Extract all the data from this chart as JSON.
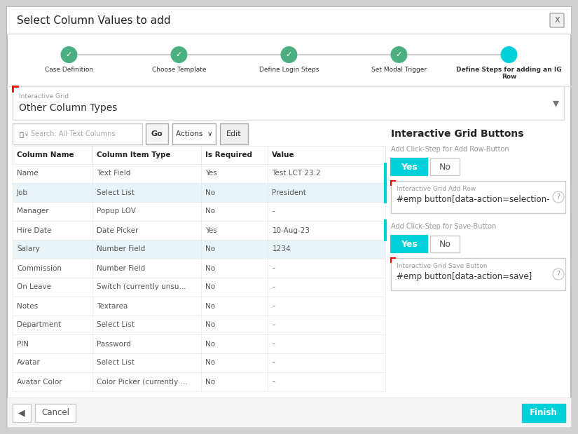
{
  "title": "Select Column Values to add",
  "wizard_steps": [
    {
      "label": "Case Definition",
      "done": true,
      "active": false
    },
    {
      "label": "Choose Template",
      "done": true,
      "active": false
    },
    {
      "label": "Define Login Steps",
      "done": true,
      "active": false
    },
    {
      "label": "Set Modal Trigger",
      "done": true,
      "active": false
    },
    {
      "label": "Define Steps for adding an IG\nRow",
      "done": false,
      "active": true
    }
  ],
  "ig_label": "Interactive Grid",
  "ig_value": "Other Column Types",
  "search_placeholder": "Search: All Text Columns",
  "table_headers": [
    "Column Name",
    "Column Item Type",
    "Is Required",
    "Value"
  ],
  "table_rows": [
    {
      "col": "Name",
      "type": "Text Field",
      "req": "Yes",
      "val": "Test LCT 23.2",
      "cyan_border": true,
      "bg": "#ffffff"
    },
    {
      "col": "Job",
      "type": "Select List",
      "req": "No",
      "val": "President",
      "cyan_border": true,
      "bg": "#e8f4f8"
    },
    {
      "col": "Manager",
      "type": "Popup LOV",
      "req": "No",
      "val": "-",
      "cyan_border": false,
      "bg": "#ffffff"
    },
    {
      "col": "Hire Date",
      "type": "Date Picker",
      "req": "Yes",
      "val": "10-Aug-23",
      "cyan_border": true,
      "bg": "#ffffff"
    },
    {
      "col": "Salary",
      "type": "Number Field",
      "req": "No",
      "val": "1234",
      "cyan_border": false,
      "bg": "#e8f4f8"
    },
    {
      "col": "Commission",
      "type": "Number Field",
      "req": "No",
      "val": "-",
      "cyan_border": false,
      "bg": "#ffffff"
    },
    {
      "col": "On Leave",
      "type": "Switch (currently unsu...",
      "req": "No",
      "val": "-",
      "cyan_border": false,
      "bg": "#ffffff"
    },
    {
      "col": "Notes",
      "type": "Textarea",
      "req": "No",
      "val": "-",
      "cyan_border": false,
      "bg": "#ffffff"
    },
    {
      "col": "Department",
      "type": "Select List",
      "req": "No",
      "val": "-",
      "cyan_border": false,
      "bg": "#ffffff"
    },
    {
      "col": "PIN",
      "type": "Password",
      "req": "No",
      "val": "-",
      "cyan_border": false,
      "bg": "#ffffff"
    },
    {
      "col": "Avatar",
      "type": "Select List",
      "req": "No",
      "val": "-",
      "cyan_border": false,
      "bg": "#ffffff"
    },
    {
      "col": "Avatar Color",
      "type": "Color Picker (currently ...",
      "req": "No",
      "val": "-",
      "cyan_border": false,
      "bg": "#ffffff"
    }
  ],
  "right_panel_title": "Interactive Grid Buttons",
  "add_row_label": "Add Click-Step for Add Row-Button",
  "add_row_field_label": "Interactive Grid Add Row",
  "add_row_field_value": "#emp button[data-action=selection-",
  "save_label": "Add Click-Step for Save-Button",
  "save_field_label": "Interactive Grid Save Button",
  "save_field_value": "#emp button[data-action=save]",
  "cyan": "#00d0d8",
  "green": "#4caf82",
  "cancel_label": "Cancel",
  "finish_label": "Finish"
}
